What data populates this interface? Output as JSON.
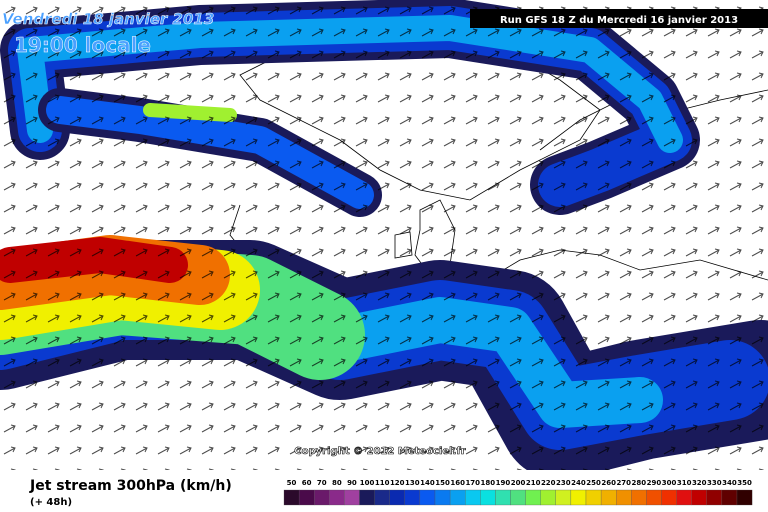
{
  "header": {
    "date": "Vendredi 18 janvier 2013",
    "time": "19:00 locale",
    "run": "Run GFS 18 Z du Mercredi 16 janvier 2013"
  },
  "map": {
    "copyright": "Copyright © 2012 Meteociel.fr"
  },
  "footer": {
    "title": "Jet stream 300hPa (km/h)",
    "lead": "(+ 48h)"
  },
  "colorbar": {
    "values": [
      50,
      60,
      70,
      80,
      90,
      100,
      110,
      120,
      130,
      140,
      150,
      160,
      170,
      180,
      190,
      200,
      210,
      220,
      230,
      240,
      250,
      260,
      270,
      280,
      290,
      300,
      310,
      320,
      330,
      340,
      350
    ],
    "colors": [
      "#2b0a2b",
      "#4a0a4a",
      "#6a1a6a",
      "#8a2a8a",
      "#a040a0",
      "#1a1a5a",
      "#1a2a8a",
      "#0a2ab0",
      "#0a3ad0",
      "#0a5af0",
      "#0a7af0",
      "#0aa0f0",
      "#0ac8f0",
      "#0ae0e0",
      "#30e0b0",
      "#50e080",
      "#70f050",
      "#a0f030",
      "#d0f020",
      "#f0f000",
      "#f0d000",
      "#f0b000",
      "#f09000",
      "#f07000",
      "#f05000",
      "#f03000",
      "#e01010",
      "#c00000",
      "#900000",
      "#600000",
      "#300000"
    ]
  }
}
